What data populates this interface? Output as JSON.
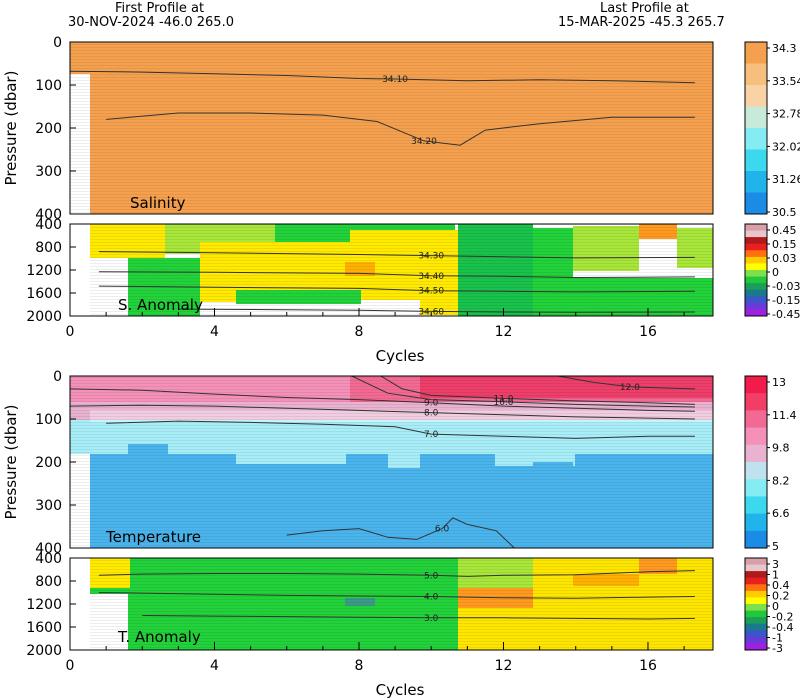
{
  "header": {
    "first_label": "First Profile at",
    "first_value": "30-NOV-2024    -46.0  265.0",
    "last_label": "Last Profile at",
    "last_value": "15-MAR-2025    -45.3  265.7"
  },
  "chart_data": [
    {
      "type": "heatmap",
      "panel_label": "Salinity",
      "ylabel": "Pressure (dbar)",
      "xlabel": "",
      "xlim": [
        0,
        17.8
      ],
      "ylim": [
        0,
        400
      ],
      "yticks": [
        "0",
        "100",
        "200",
        "300",
        "400"
      ],
      "colorbar_labels": [
        "34.3",
        "33.54",
        "32.78",
        "32.02",
        "31.26",
        "30.5"
      ],
      "contours": [
        {
          "label": "34.10",
          "x": [
            0,
            2,
            4,
            6,
            8,
            9,
            11,
            13,
            15,
            17.3
          ],
          "y": [
            68,
            70,
            74,
            78,
            85,
            86,
            90,
            88,
            90,
            95
          ]
        },
        {
          "label": "34.20",
          "x": [
            1,
            3,
            5,
            7,
            8.5,
            9.8,
            10.8,
            11.5,
            13,
            15,
            17.3
          ],
          "y": [
            180,
            165,
            165,
            170,
            185,
            230,
            240,
            205,
            190,
            175,
            175
          ]
        }
      ]
    },
    {
      "type": "heatmap",
      "panel_label": "S. Anomaly",
      "xlabel": "Cycles",
      "xlim": [
        0,
        17.8
      ],
      "ylim": [
        400,
        2000
      ],
      "yticks": [
        "400",
        "800",
        "1200",
        "1600",
        "2000"
      ],
      "xticks": [
        "0",
        "4",
        "8",
        "12",
        "16"
      ],
      "colorbar_labels": [
        "0.45",
        "0.15",
        "0.03",
        "0",
        "-0.03",
        "-0.15",
        "-0.45"
      ],
      "contours": [
        {
          "label": "34.30",
          "x": [
            0.8,
            4,
            8,
            10,
            12,
            14,
            17.3
          ],
          "y": [
            880,
            900,
            930,
            950,
            970,
            990,
            980
          ]
        },
        {
          "label": "34.40",
          "x": [
            0.8,
            4,
            8,
            10,
            12,
            14,
            17.3
          ],
          "y": [
            1230,
            1240,
            1260,
            1300,
            1310,
            1330,
            1320
          ]
        },
        {
          "label": "34.50",
          "x": [
            0.8,
            4,
            8,
            10,
            12,
            14,
            17.3
          ],
          "y": [
            1480,
            1500,
            1520,
            1560,
            1570,
            1580,
            1570
          ]
        },
        {
          "label": "34.60",
          "x": [
            3,
            6,
            8,
            10,
            12,
            14,
            17.3
          ],
          "y": [
            1880,
            1890,
            1900,
            1920,
            1930,
            1935,
            1930
          ]
        }
      ]
    },
    {
      "type": "heatmap",
      "panel_label": "Temperature",
      "ylabel": "Pressure (dbar)",
      "xlabel": "",
      "xlim": [
        0,
        17.8
      ],
      "ylim": [
        0,
        400
      ],
      "yticks": [
        "0",
        "100",
        "200",
        "300",
        "400"
      ],
      "colorbar_labels": [
        "13",
        "11.4",
        "9.8",
        "8.2",
        "6.6",
        "5"
      ],
      "contours": [
        {
          "label": "12.0",
          "x": [
            13.5,
            14.5,
            15.5,
            16.5,
            17.3
          ],
          "y": [
            0,
            15,
            25,
            28,
            30
          ]
        },
        {
          "label": "11.0",
          "x": [
            8.6,
            9.2,
            10,
            12,
            14,
            16,
            17.3
          ],
          "y": [
            0,
            30,
            45,
            52,
            58,
            62,
            66
          ]
        },
        {
          "label": "10.0",
          "x": [
            7.8,
            8.8,
            10,
            12,
            14,
            16,
            17.3
          ],
          "y": [
            0,
            40,
            55,
            60,
            66,
            70,
            72
          ]
        },
        {
          "label": "9.0",
          "x": [
            0,
            2,
            4,
            6,
            8,
            10,
            12,
            14,
            16,
            17.3
          ],
          "y": [
            30,
            33,
            42,
            50,
            55,
            62,
            70,
            75,
            80,
            82
          ]
        },
        {
          "label": "8.0",
          "x": [
            0,
            2,
            4,
            6,
            8,
            10,
            12,
            14,
            16,
            17.3
          ],
          "y": [
            70,
            68,
            70,
            75,
            80,
            85,
            90,
            95,
            98,
            100
          ]
        },
        {
          "label": "7.0",
          "x": [
            1,
            3,
            5,
            7,
            9,
            10,
            12,
            14,
            16,
            17.3
          ],
          "y": [
            110,
            105,
            108,
            112,
            118,
            135,
            140,
            145,
            140,
            140
          ]
        },
        {
          "label": "6.0",
          "x": [
            6,
            7,
            8,
            8.8,
            9.6,
            10.3,
            10.6,
            11,
            11.8,
            12.3
          ],
          "y": [
            370,
            360,
            355,
            375,
            380,
            355,
            330,
            345,
            360,
            400
          ]
        }
      ]
    },
    {
      "type": "heatmap",
      "panel_label": "T. Anomaly",
      "xlabel": "Cycles",
      "xlim": [
        0,
        17.8
      ],
      "ylim": [
        400,
        2000
      ],
      "yticks": [
        "400",
        "800",
        "1200",
        "1600",
        "2000"
      ],
      "xticks": [
        "0",
        "4",
        "8",
        "12",
        "16"
      ],
      "colorbar_labels": [
        "3",
        "1",
        "0.4",
        "0.2",
        "0",
        "-0.2",
        "-0.4",
        "-1",
        "-3"
      ],
      "contours": [
        {
          "label": "5.0",
          "x": [
            0.8,
            2,
            4,
            6,
            8,
            10,
            11,
            12,
            14,
            16,
            17.3
          ],
          "y": [
            700,
            680,
            670,
            670,
            680,
            700,
            720,
            700,
            690,
            640,
            620
          ]
        },
        {
          "label": "4.0",
          "x": [
            0.8,
            2,
            4,
            6,
            8,
            10,
            12,
            14,
            16,
            17.3
          ],
          "y": [
            1000,
            1010,
            1030,
            1050,
            1060,
            1070,
            1090,
            1100,
            1080,
            1070
          ]
        },
        {
          "label": "3.0",
          "x": [
            2,
            4,
            6,
            8,
            10,
            12,
            14,
            16,
            17.3
          ],
          "y": [
            1400,
            1410,
            1420,
            1430,
            1440,
            1440,
            1450,
            1460,
            1450
          ]
        }
      ]
    }
  ]
}
